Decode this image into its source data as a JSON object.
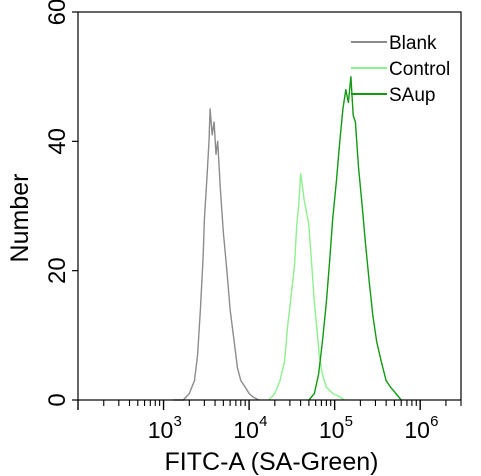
{
  "chart_data": {
    "type": "line",
    "title": "",
    "xlabel": "FITC-A (SA-Green)",
    "ylabel": "Number",
    "x_scale": "log",
    "xlim": [
      100,
      3000000
    ],
    "ylim": [
      0,
      60
    ],
    "y_ticks": [
      0,
      20,
      40,
      60
    ],
    "x_tick_labels": [
      {
        "base": "10",
        "exp": "3",
        "value": 1000
      },
      {
        "base": "10",
        "exp": "4",
        "value": 10000
      },
      {
        "base": "10",
        "exp": "5",
        "value": 100000
      },
      {
        "base": "10",
        "exp": "6",
        "value": 1000000
      }
    ],
    "legend_position": "top-right",
    "grid": false,
    "series": [
      {
        "name": "Blank",
        "color": "#8c8c8c",
        "points": [
          [
            1300,
            0
          ],
          [
            1700,
            0
          ],
          [
            2000,
            1
          ],
          [
            2300,
            3
          ],
          [
            2500,
            7
          ],
          [
            2700,
            14
          ],
          [
            2900,
            22
          ],
          [
            3000,
            28
          ],
          [
            3200,
            34
          ],
          [
            3400,
            40
          ],
          [
            3500,
            45
          ],
          [
            3700,
            41
          ],
          [
            3900,
            43
          ],
          [
            4100,
            38
          ],
          [
            4300,
            40
          ],
          [
            4600,
            33
          ],
          [
            5000,
            26
          ],
          [
            5500,
            20
          ],
          [
            6000,
            14
          ],
          [
            6700,
            9
          ],
          [
            7300,
            5
          ],
          [
            8000,
            3
          ],
          [
            9000,
            2
          ],
          [
            10000,
            1
          ],
          [
            11000,
            0.5
          ],
          [
            13000,
            0
          ]
        ]
      },
      {
        "name": "Control",
        "color": "#8ef08e",
        "points": [
          [
            17000,
            0
          ],
          [
            20000,
            1
          ],
          [
            23000,
            3
          ],
          [
            26000,
            6
          ],
          [
            28000,
            11
          ],
          [
            31000,
            16
          ],
          [
            34000,
            21
          ],
          [
            36000,
            27
          ],
          [
            38000,
            30
          ],
          [
            40000,
            35
          ],
          [
            42000,
            33
          ],
          [
            44000,
            31
          ],
          [
            47000,
            29
          ],
          [
            50000,
            27
          ],
          [
            54000,
            21
          ],
          [
            58000,
            15
          ],
          [
            62000,
            11
          ],
          [
            66000,
            7
          ],
          [
            72000,
            4
          ],
          [
            80000,
            2
          ],
          [
            95000,
            1
          ],
          [
            115000,
            0.5
          ],
          [
            130000,
            0
          ]
        ]
      },
      {
        "name": "SAup",
        "color": "#129a12",
        "points": [
          [
            50000,
            0
          ],
          [
            58000,
            1
          ],
          [
            65000,
            4
          ],
          [
            72000,
            9
          ],
          [
            80000,
            15
          ],
          [
            88000,
            22
          ],
          [
            95000,
            28
          ],
          [
            105000,
            34
          ],
          [
            115000,
            40
          ],
          [
            125000,
            45
          ],
          [
            135000,
            48
          ],
          [
            145000,
            46
          ],
          [
            155000,
            50
          ],
          [
            165000,
            44
          ],
          [
            175000,
            43
          ],
          [
            190000,
            36
          ],
          [
            210000,
            30
          ],
          [
            230000,
            24
          ],
          [
            255000,
            18
          ],
          [
            280000,
            13
          ],
          [
            310000,
            9
          ],
          [
            350000,
            6
          ],
          [
            400000,
            3
          ],
          [
            450000,
            2
          ],
          [
            520000,
            1
          ],
          [
            600000,
            0
          ]
        ]
      }
    ]
  }
}
